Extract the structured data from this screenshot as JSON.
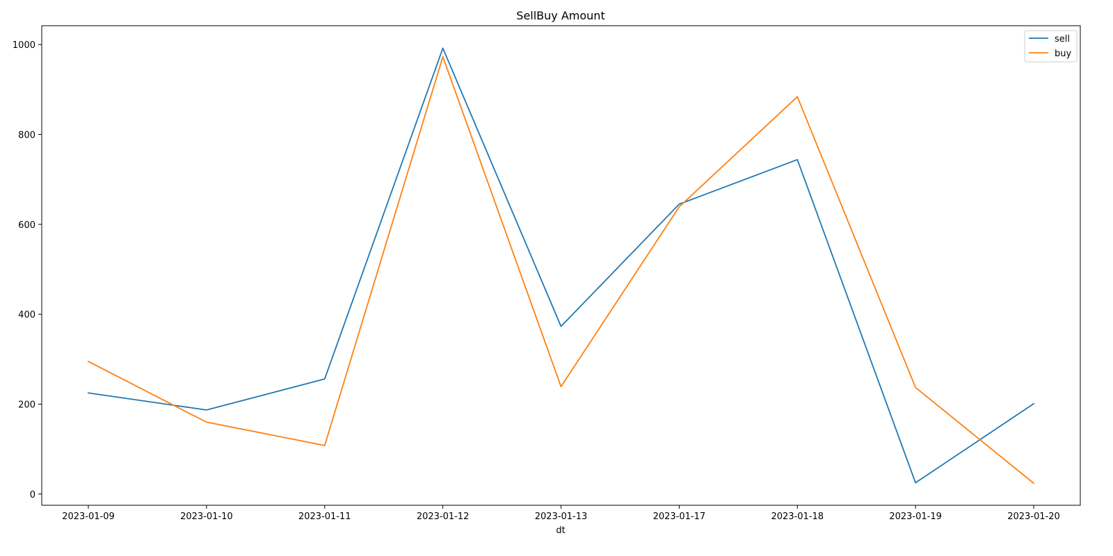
{
  "chart_data": {
    "type": "line",
    "title": "SellBuy Amount",
    "xlabel": "dt",
    "ylabel": "",
    "x": [
      "2023-01-09",
      "2023-01-10",
      "2023-01-11",
      "2023-01-12",
      "2023-01-13",
      "2023-01-17",
      "2023-01-18",
      "2023-01-19",
      "2023-01-20"
    ],
    "series": [
      {
        "name": "sell",
        "color": "#1f77b4",
        "values": [
          225,
          187,
          256,
          992,
          373,
          645,
          744,
          25,
          201
        ]
      },
      {
        "name": "buy",
        "color": "#ff7f0e",
        "values": [
          295,
          160,
          108,
          973,
          239,
          639,
          884,
          237,
          24
        ]
      }
    ],
    "yticks": [
      0,
      200,
      400,
      600,
      800,
      1000
    ],
    "ylim": [
      -25,
      1042
    ],
    "grid": false,
    "legend_position": "top-right"
  }
}
